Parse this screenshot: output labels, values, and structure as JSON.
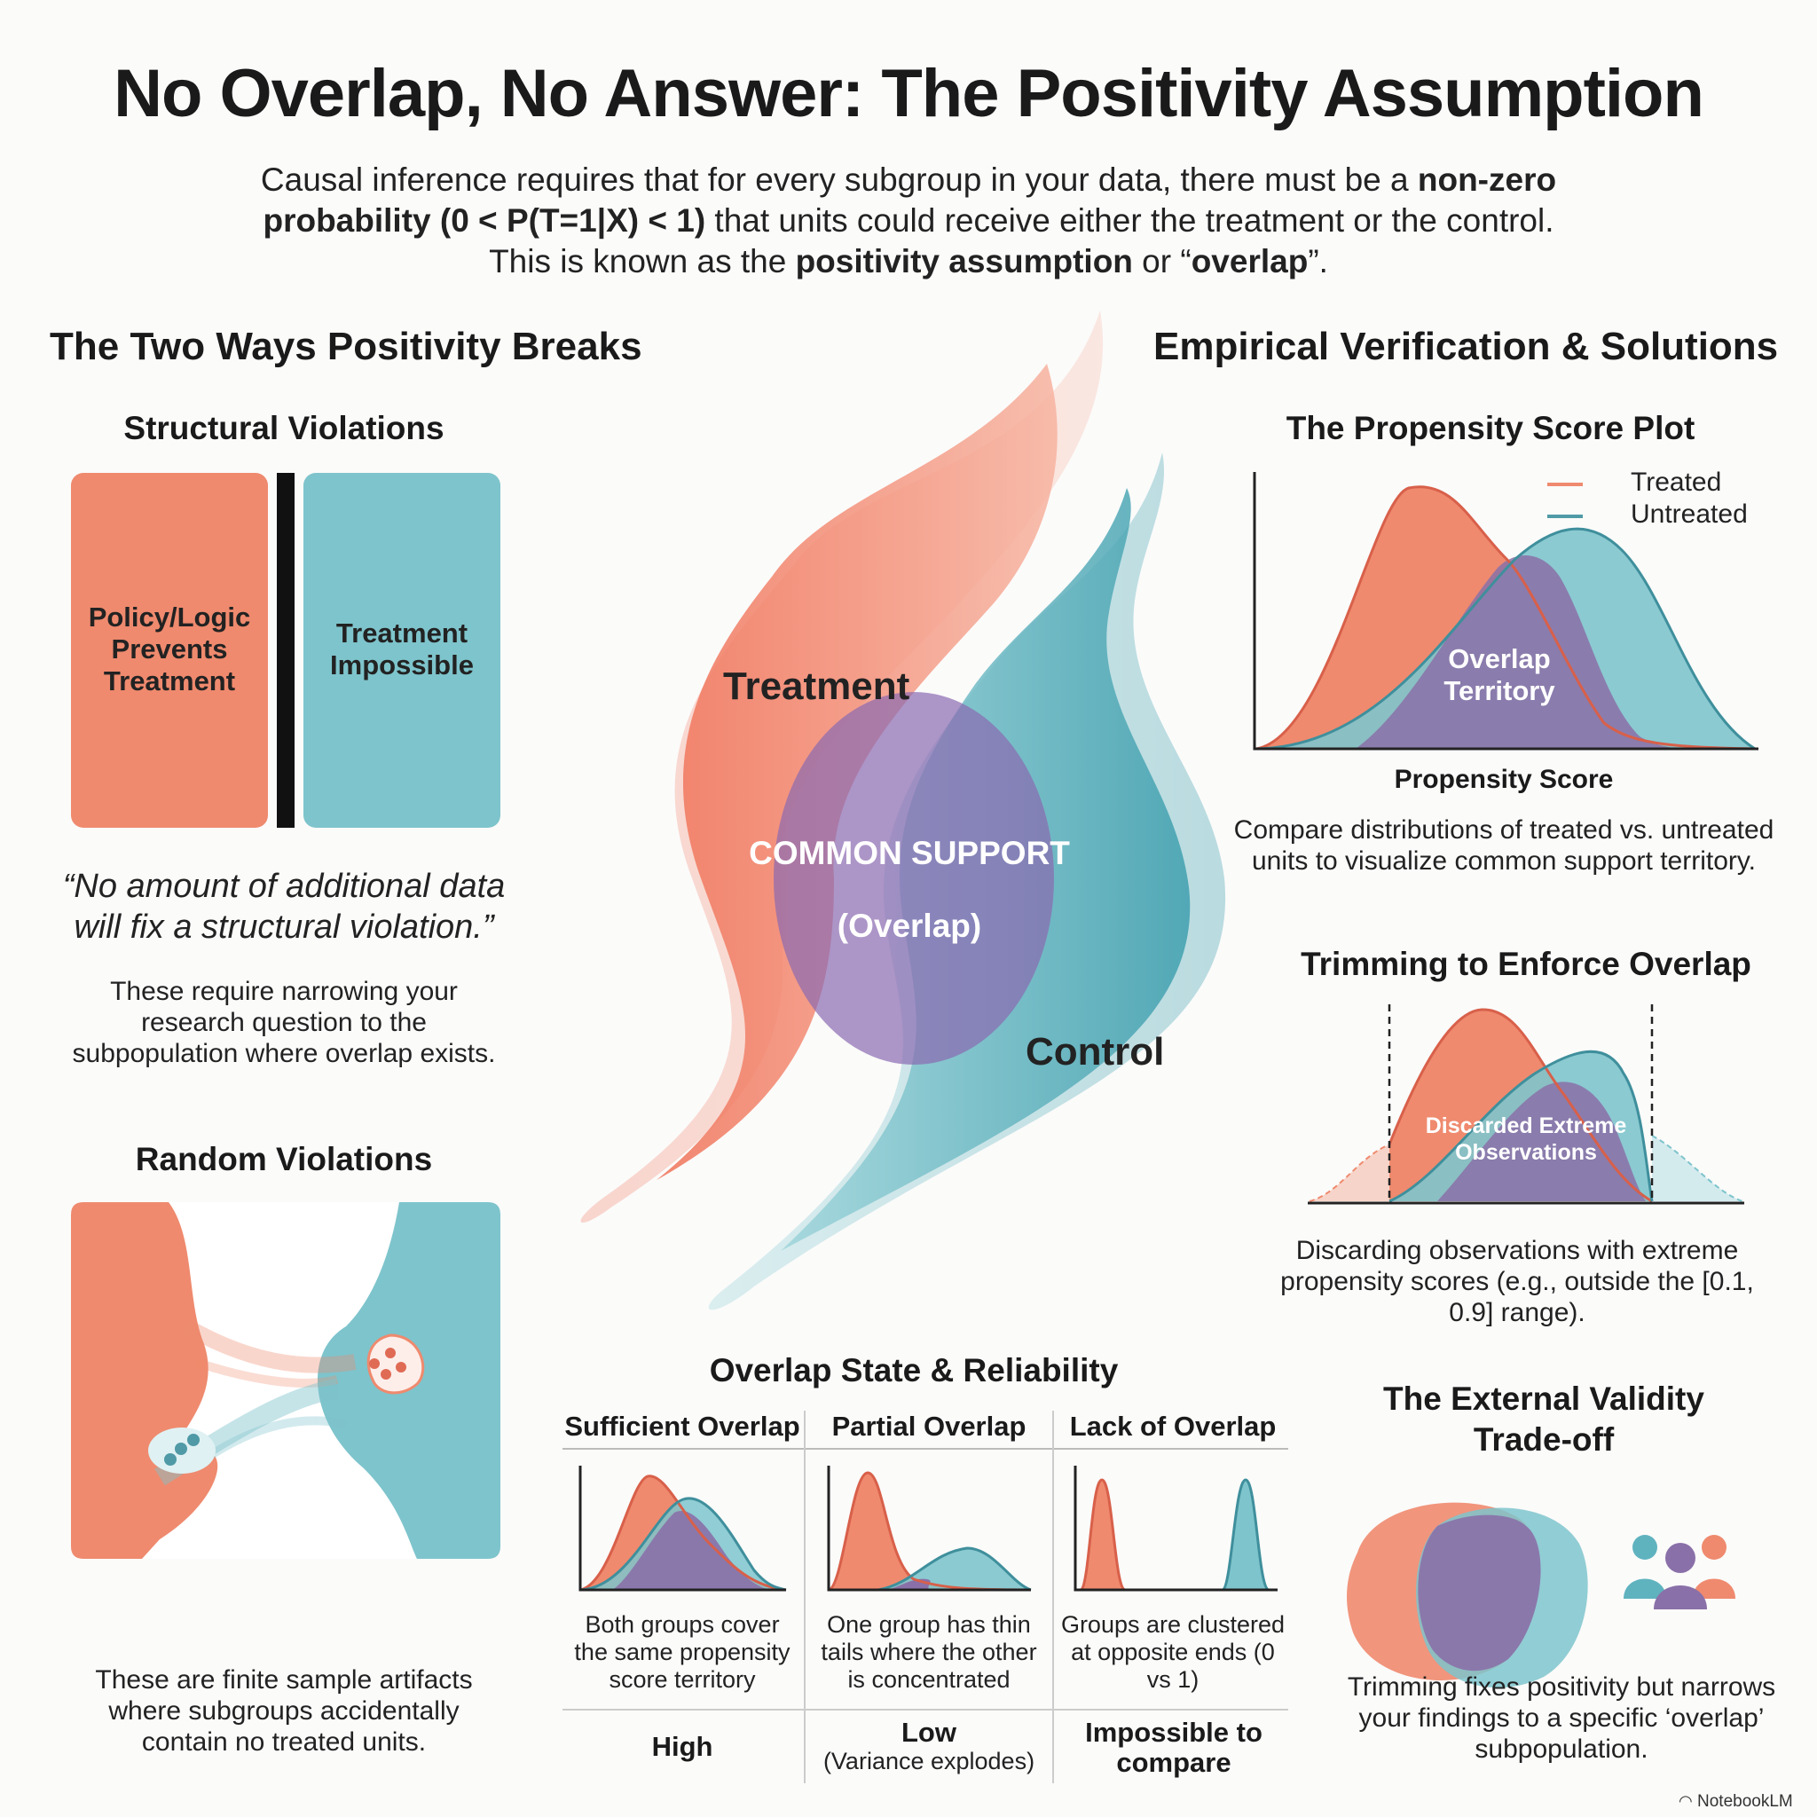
{
  "title": "No Overlap, No Answer: The Positivity Assumption",
  "intro": {
    "line1_a": "Causal inference requires that for every subgroup in your data, there must be a ",
    "line1_b": "non-zero",
    "line2_a": "probability (0 < P(T=1|X) < 1)",
    "line2_b": " that units could receive either the treatment or the control.",
    "line3_a": "This is known as the ",
    "line3_b": "positivity assumption",
    "line3_c": " or “",
    "line3_d": "overlap",
    "line3_e": "”."
  },
  "left": {
    "heading": "The Two Ways Positivity Breaks",
    "structural": {
      "heading": "Structural Violations",
      "box_left": "Policy/Logic Prevents Treatment",
      "box_right": "Treatment Impossible",
      "quote": "“No amount of additional data will fix a structural violation.”",
      "text": "These require narrowing your research question to the subpopulation where overlap exists."
    },
    "random": {
      "heading": "Random Violations",
      "text": "These are finite sample artifacts where subgroups accidentally contain no treated units."
    }
  },
  "center": {
    "treatment_label": "Treatment",
    "control_label": "Control",
    "common_support": "COMMON SUPPORT",
    "overlap_paren": "(Overlap)"
  },
  "overlap_table": {
    "heading": "Overlap State & Reliability",
    "columns": [
      {
        "header": "Sufficient Overlap",
        "desc": "Both groups cover the same propensity score territory",
        "reliability": "High",
        "reliability_note": ""
      },
      {
        "header": "Partial Overlap",
        "desc": "One group has thin tails where the other is concentrated",
        "reliability": "Low",
        "reliability_note": "(Variance explodes)"
      },
      {
        "header": "Lack of Overlap",
        "desc": "Groups are clustered at opposite ends (0 vs 1)",
        "reliability": "Impossible to compare",
        "reliability_note": ""
      }
    ]
  },
  "right": {
    "heading": "Empirical Verification & Solutions",
    "propensity": {
      "heading": "The Propensity Score Plot",
      "legend_treated": "Treated",
      "legend_untreated": "Untreated",
      "overlap_label": "Overlap Territory",
      "xlabel": "Propensity Score",
      "text": "Compare distributions of treated vs. untreated units to visualize common support territory."
    },
    "trimming": {
      "heading": "Trimming to Enforce Overlap",
      "discard_label": "Discarded Extreme Observations",
      "text": "Discarding observations with extreme propensity scores (e.g., outside the [0.1, 0.9] range)."
    },
    "external": {
      "heading": "The External Validity Trade-off",
      "text": "Trimming fixes positivity but narrows your findings to a specific ‘overlap’ subpopulation."
    }
  },
  "footer": "NotebookLM",
  "colors": {
    "treated": "#ef8063",
    "untreated": "#5fb3bf",
    "overlap": "#8a70a8"
  }
}
